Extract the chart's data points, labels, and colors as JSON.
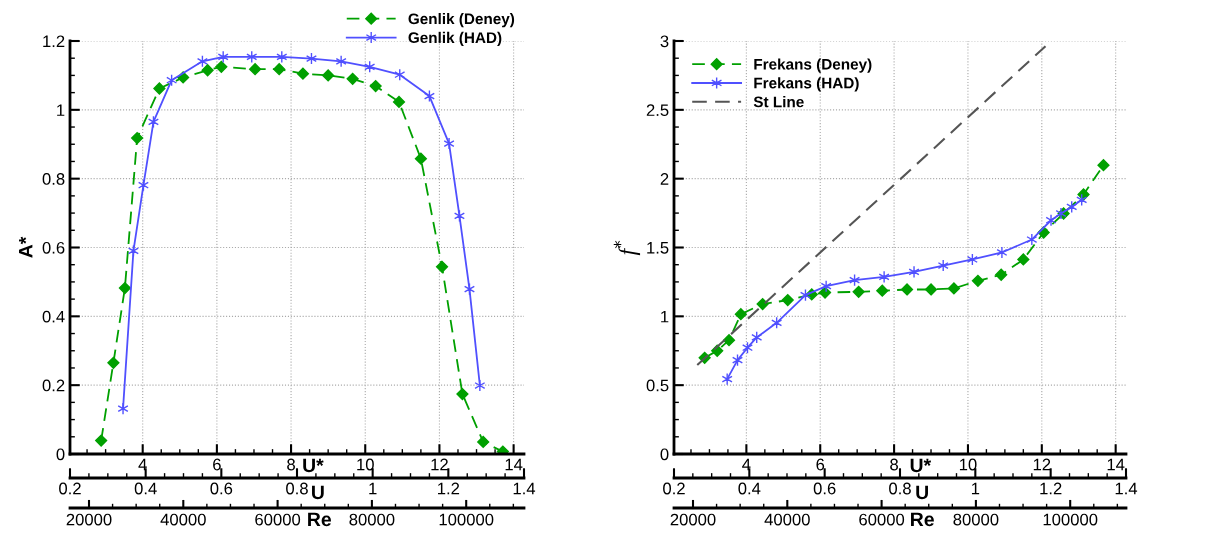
{
  "chart_data": [
    {
      "type": "line",
      "ylabel": "A*",
      "xlabel": "U*",
      "x2label": "U",
      "xlim": [
        2.04,
        14.28
      ],
      "xticks": [
        4,
        6,
        8,
        10,
        12,
        14
      ],
      "x2lim": [
        0.2,
        1.4
      ],
      "x2ticks": [
        0.2,
        0.4,
        0.6,
        0.8,
        1,
        1.2,
        1.4
      ],
      "ylim": [
        0,
        1.2
      ],
      "yticks": [
        0,
        0.2,
        0.4,
        0.6,
        0.8,
        1,
        1.2
      ],
      "grid": true,
      "legend": "top right",
      "annotations": [
        "20000",
        "40000",
        "60000",
        "80000",
        "100000",
        "Re"
      ],
      "series": [
        {
          "name": "Genlik (Deney)",
          "color": "#00a000",
          "marker": "diamond",
          "line_style": "dashed",
          "x": [
            2.88,
            3.21,
            3.52,
            3.85,
            4.45,
            5.09,
            5.75,
            6.12,
            7.03,
            7.68,
            8.32,
            9.0,
            9.66,
            10.28,
            10.91,
            11.5,
            12.07,
            12.62,
            13.18,
            13.71
          ],
          "values": [
            0.039,
            0.265,
            0.482,
            0.918,
            1.062,
            1.094,
            1.115,
            1.125,
            1.118,
            1.118,
            1.105,
            1.1,
            1.09,
            1.069,
            1.023,
            0.858,
            0.544,
            0.174,
            0.035,
            0.007
          ]
        },
        {
          "name": "Genlik (HAD)",
          "color": "#5050ff",
          "marker": "cross",
          "line_style": "solid",
          "x": [
            3.47,
            3.75,
            4.02,
            4.29,
            4.78,
            5.61,
            6.17,
            6.94,
            7.75,
            8.55,
            9.35,
            10.12,
            10.93,
            11.73,
            12.26,
            12.54,
            12.81,
            13.09
          ],
          "values": [
            0.132,
            0.59,
            0.781,
            0.965,
            1.086,
            1.141,
            1.154,
            1.154,
            1.154,
            1.149,
            1.141,
            1.125,
            1.102,
            1.04,
            0.902,
            0.692,
            0.479,
            0.199
          ]
        }
      ]
    },
    {
      "type": "line",
      "ylabel": "f$^{*}$",
      "xlabel": "U*",
      "x2label": "U",
      "xlim": [
        2.04,
        14.28
      ],
      "xticks": [
        4,
        6,
        8,
        10,
        12,
        14
      ],
      "x2lim": [
        0.2,
        1.4
      ],
      "x2ticks": [
        0.2,
        0.4,
        0.6,
        0.8,
        1,
        1.2,
        1.4
      ],
      "ylim": [
        0,
        3
      ],
      "yticks": [
        0,
        0.5,
        1,
        1.5,
        2,
        2.5,
        3
      ],
      "grid": true,
      "legend": "top left",
      "annotations": [
        "20000",
        "40000",
        "60000",
        "80000",
        "100000",
        "Re"
      ],
      "series": [
        {
          "name": "Frekans (Deney)",
          "color": "#00a000",
          "marker": "diamond",
          "line_style": "dashed",
          "x": [
            2.87,
            3.21,
            3.53,
            3.85,
            4.44,
            5.12,
            5.77,
            6.13,
            7.04,
            7.68,
            8.35,
            9.0,
            9.62,
            10.27,
            10.9,
            11.5,
            12.05,
            12.59,
            13.13,
            13.67
          ],
          "values": [
            0.699,
            0.75,
            0.827,
            1.016,
            1.089,
            1.118,
            1.159,
            1.173,
            1.178,
            1.186,
            1.195,
            1.195,
            1.203,
            1.258,
            1.302,
            1.413,
            1.609,
            1.747,
            1.885,
            2.098
          ]
        },
        {
          "name": "Frekans (HAD)",
          "color": "#5050ff",
          "marker": "cross",
          "line_style": "solid",
          "x": [
            3.48,
            3.76,
            4.03,
            4.28,
            4.82,
            5.6,
            6.16,
            6.93,
            7.73,
            8.54,
            9.33,
            10.12,
            10.92,
            11.73,
            12.25,
            12.52,
            12.81,
            13.08
          ],
          "values": [
            0.544,
            0.682,
            0.772,
            0.847,
            0.953,
            1.154,
            1.219,
            1.263,
            1.287,
            1.323,
            1.369,
            1.413,
            1.464,
            1.558,
            1.698,
            1.747,
            1.795,
            1.846
          ]
        },
        {
          "name": "St Line",
          "color": "#555555",
          "marker": "none",
          "line_style": "dashed",
          "x": [
            2.67,
            12.1
          ],
          "values": [
            0.646,
            2.962
          ]
        }
      ]
    }
  ]
}
